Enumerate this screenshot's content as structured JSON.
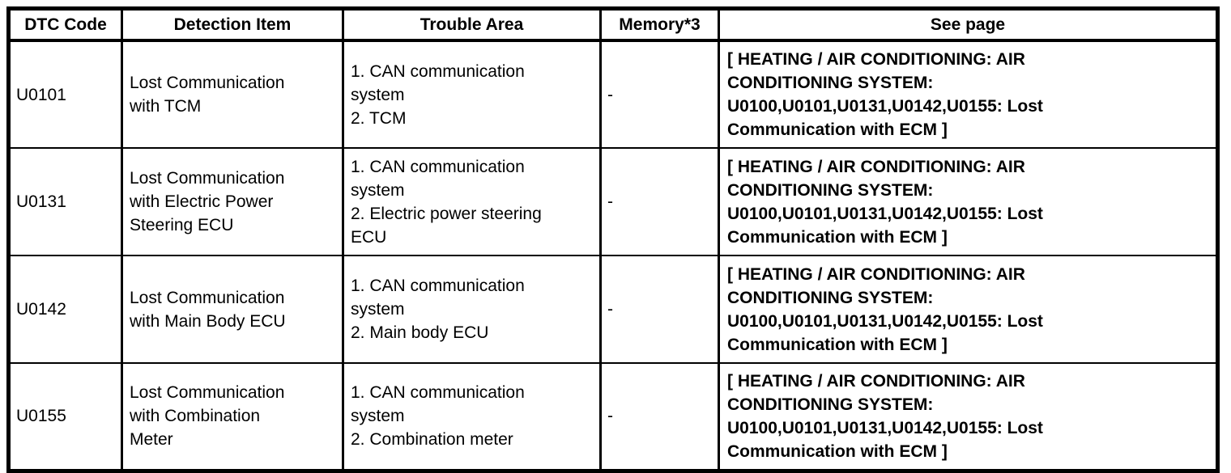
{
  "table": {
    "headers": [
      "DTC Code",
      "Detection Item",
      "Trouble Area",
      "Memory*3",
      "See page"
    ],
    "rows": [
      {
        "dtc_code": "U0101",
        "detection_item": "Lost Communication\nwith TCM",
        "trouble_area": "1. CAN communication\nsystem\n2. TCM",
        "memory": "-",
        "see_page": "[ HEATING / AIR CONDITIONING: AIR\nCONDITIONING SYSTEM:\nU0100,U0101,U0131,U0142,U0155: Lost\nCommunication with ECM ]"
      },
      {
        "dtc_code": "U0131",
        "detection_item": "Lost Communication\nwith Electric Power\nSteering ECU",
        "trouble_area": "1. CAN communication\nsystem\n2. Electric power steering\nECU",
        "memory": "-",
        "see_page": "[ HEATING / AIR CONDITIONING: AIR\nCONDITIONING SYSTEM:\nU0100,U0101,U0131,U0142,U0155: Lost\nCommunication with ECM ]"
      },
      {
        "dtc_code": "U0142",
        "detection_item": "Lost Communication\nwith Main Body ECU",
        "trouble_area": "1. CAN communication\nsystem\n2. Main body ECU",
        "memory": "-",
        "see_page": "[ HEATING / AIR CONDITIONING: AIR\nCONDITIONING SYSTEM:\nU0100,U0101,U0131,U0142,U0155: Lost\nCommunication with ECM ]"
      },
      {
        "dtc_code": "U0155",
        "detection_item": "Lost Communication\nwith Combination\nMeter",
        "trouble_area": "1. CAN communication\nsystem\n2. Combination meter",
        "memory": "-",
        "see_page": "[ HEATING / AIR CONDITIONING: AIR\nCONDITIONING SYSTEM:\nU0100,U0101,U0131,U0142,U0155: Lost\nCommunication with ECM ]"
      }
    ]
  }
}
